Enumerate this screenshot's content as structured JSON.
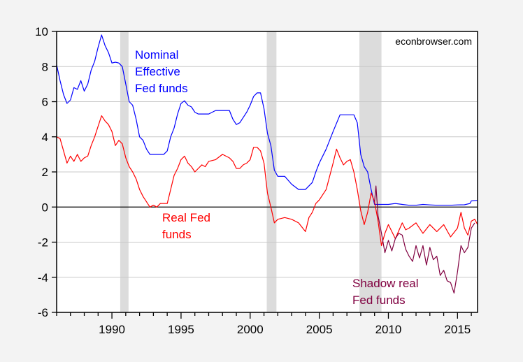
{
  "chart_data": {
    "type": "line",
    "title": "",
    "xlabel": "",
    "ylabel": "",
    "watermark": "econbrowser.com",
    "xlim": [
      1986.0,
      2016.45
    ],
    "ylim": [
      -6,
      10
    ],
    "grid": "horizontal",
    "legend": "inline annotations",
    "x_ticks": [
      1990,
      1995,
      2000,
      2005,
      2010,
      2015
    ],
    "x_tick_labels": [
      "1990",
      "1995",
      "2000",
      "2005",
      "2010",
      "2015"
    ],
    "y_ticks": [
      -6,
      -4,
      -2,
      0,
      2,
      4,
      6,
      8,
      10
    ],
    "y_tick_labels": [
      "-6",
      "-4",
      "-2",
      "0",
      "2",
      "4",
      "6",
      "8",
      "10"
    ],
    "recessions": [
      [
        1990.6,
        1991.2
      ],
      [
        2001.2,
        2001.9
      ],
      [
        2007.9,
        2009.5
      ]
    ],
    "annotations": [
      {
        "series": "nominal",
        "lines": [
          "Nominal",
          "Effective",
          "Fed funds"
        ]
      },
      {
        "series": "real",
        "lines": [
          "Real Fed",
          "funds"
        ]
      },
      {
        "series": "shadow",
        "lines": [
          "Shadow real",
          "Fed funds"
        ]
      }
    ],
    "series": [
      {
        "name": "Nominal Effective Fed funds",
        "key": "nominal",
        "color": "#0000ff",
        "x": [
          1986.0,
          1986.25,
          1986.5,
          1986.75,
          1987.0,
          1987.25,
          1987.5,
          1987.75,
          1988.0,
          1988.25,
          1988.5,
          1988.75,
          1989.0,
          1989.25,
          1989.5,
          1989.75,
          1990.0,
          1990.25,
          1990.5,
          1990.75,
          1991.0,
          1991.25,
          1991.5,
          1991.75,
          1992.0,
          1992.25,
          1992.5,
          1992.75,
          1993.0,
          1993.25,
          1993.5,
          1993.75,
          1994.0,
          1994.25,
          1994.5,
          1994.75,
          1995.0,
          1995.25,
          1995.5,
          1995.75,
          1996.0,
          1996.25,
          1996.5,
          1996.75,
          1997.0,
          1997.5,
          1998.0,
          1998.5,
          1998.75,
          1999.0,
          1999.25,
          1999.5,
          1999.75,
          2000.0,
          2000.25,
          2000.5,
          2000.75,
          2001.0,
          2001.25,
          2001.5,
          2001.75,
          2002.0,
          2002.5,
          2003.0,
          2003.5,
          2004.0,
          2004.5,
          2004.75,
          2005.0,
          2005.5,
          2006.0,
          2006.5,
          2007.0,
          2007.5,
          2007.75,
          2008.0,
          2008.25,
          2008.5,
          2008.75,
          2009.0,
          2009.5,
          2010.0,
          2010.5,
          2011.0,
          2011.5,
          2012.0,
          2012.5,
          2013.0,
          2013.5,
          2014.0,
          2014.5,
          2015.0,
          2015.5,
          2015.9,
          2016.0,
          2016.45
        ],
        "y": [
          8.1,
          7.2,
          6.4,
          5.9,
          6.1,
          6.8,
          6.7,
          7.2,
          6.6,
          7.0,
          7.8,
          8.3,
          9.1,
          9.8,
          9.2,
          8.8,
          8.2,
          8.25,
          8.2,
          8.0,
          7.0,
          6.0,
          5.8,
          5.0,
          4.0,
          3.8,
          3.3,
          3.0,
          3.0,
          3.0,
          3.0,
          3.0,
          3.2,
          4.0,
          4.5,
          5.3,
          5.9,
          6.05,
          5.8,
          5.7,
          5.4,
          5.3,
          5.3,
          5.3,
          5.3,
          5.5,
          5.5,
          5.5,
          5.0,
          4.7,
          4.8,
          5.1,
          5.4,
          5.8,
          6.3,
          6.5,
          6.5,
          5.6,
          4.2,
          3.5,
          2.1,
          1.75,
          1.75,
          1.3,
          1.0,
          1.0,
          1.4,
          2.0,
          2.5,
          3.3,
          4.3,
          5.25,
          5.25,
          5.25,
          4.8,
          3.0,
          2.3,
          2.0,
          1.0,
          0.15,
          0.15,
          0.15,
          0.2,
          0.15,
          0.1,
          0.1,
          0.15,
          0.12,
          0.1,
          0.1,
          0.1,
          0.12,
          0.13,
          0.2,
          0.35,
          0.38
        ]
      },
      {
        "name": "Real Fed funds",
        "key": "real",
        "color": "#ff0000",
        "x": [
          1986.0,
          1986.25,
          1986.5,
          1986.75,
          1987.0,
          1987.25,
          1987.5,
          1987.75,
          1988.0,
          1988.25,
          1988.5,
          1988.75,
          1989.0,
          1989.25,
          1989.5,
          1989.75,
          1990.0,
          1990.25,
          1990.5,
          1990.75,
          1991.0,
          1991.25,
          1991.5,
          1991.75,
          1992.0,
          1992.25,
          1992.5,
          1992.75,
          1993.0,
          1993.25,
          1993.5,
          1993.75,
          1994.0,
          1994.25,
          1994.5,
          1994.75,
          1995.0,
          1995.25,
          1995.5,
          1995.75,
          1996.0,
          1996.25,
          1996.5,
          1996.75,
          1997.0,
          1997.5,
          1998.0,
          1998.5,
          1998.75,
          1999.0,
          1999.25,
          1999.5,
          1999.75,
          2000.0,
          2000.25,
          2000.5,
          2000.75,
          2001.0,
          2001.25,
          2001.5,
          2001.75,
          2002.0,
          2002.5,
          2003.0,
          2003.5,
          2004.0,
          2004.25,
          2004.5,
          2004.75,
          2005.0,
          2005.5,
          2006.0,
          2006.25,
          2006.5,
          2006.75,
          2007.0,
          2007.25,
          2007.5,
          2007.75,
          2008.0,
          2008.25,
          2008.5,
          2008.75,
          2009.0,
          2009.25,
          2009.5,
          2009.75,
          2010.0,
          2010.5,
          2011.0,
          2011.25,
          2011.5,
          2012.0,
          2012.5,
          2013.0,
          2013.5,
          2014.0,
          2014.5,
          2015.0,
          2015.25,
          2015.5,
          2015.75,
          2016.0,
          2016.25,
          2016.45
        ],
        "y": [
          4.0,
          3.9,
          3.2,
          2.5,
          2.9,
          2.6,
          3.0,
          2.6,
          2.8,
          2.9,
          3.5,
          4.0,
          4.6,
          5.2,
          4.9,
          4.7,
          4.3,
          3.5,
          3.8,
          3.6,
          2.8,
          2.3,
          2.0,
          1.6,
          1.0,
          0.6,
          0.3,
          0.0,
          0.1,
          0.0,
          0.2,
          0.2,
          0.2,
          1.0,
          1.8,
          2.2,
          2.7,
          2.9,
          2.5,
          2.3,
          2.0,
          2.2,
          2.4,
          2.3,
          2.6,
          2.7,
          3.0,
          2.8,
          2.6,
          2.2,
          2.2,
          2.4,
          2.5,
          2.7,
          3.4,
          3.4,
          3.2,
          2.5,
          0.8,
          0.0,
          -0.9,
          -0.7,
          -0.6,
          -0.7,
          -0.9,
          -1.4,
          -0.6,
          -0.3,
          0.2,
          0.4,
          1.0,
          2.5,
          3.3,
          2.8,
          2.4,
          2.6,
          2.7,
          2.0,
          1.0,
          -0.2,
          -1.0,
          -0.3,
          0.8,
          0.3,
          -0.8,
          -2.2,
          -1.5,
          -1.0,
          -1.8,
          -0.9,
          -1.3,
          -1.2,
          -0.9,
          -1.5,
          -1.0,
          -1.4,
          -1.0,
          -1.7,
          -1.2,
          -0.3,
          -1.2,
          -1.6,
          -0.8,
          -0.7,
          -1.0
        ]
      },
      {
        "name": "Shadow real Fed funds",
        "key": "shadow",
        "color": "#800040",
        "x": [
          2009.0,
          2009.1,
          2009.25,
          2009.5,
          2009.75,
          2010.0,
          2010.25,
          2010.5,
          2010.75,
          2011.0,
          2011.25,
          2011.5,
          2011.75,
          2012.0,
          2012.25,
          2012.5,
          2012.75,
          2013.0,
          2013.25,
          2013.5,
          2013.75,
          2014.0,
          2014.25,
          2014.5,
          2014.75,
          2015.0,
          2015.25,
          2015.5,
          2015.75,
          2016.0,
          2016.25
        ],
        "y": [
          0.3,
          1.2,
          -0.5,
          -1.5,
          -2.6,
          -1.9,
          -2.5,
          -1.8,
          -1.5,
          -1.6,
          -2.4,
          -2.8,
          -3.1,
          -2.2,
          -2.9,
          -2.2,
          -3.3,
          -2.3,
          -3.0,
          -2.8,
          -3.9,
          -3.6,
          -4.2,
          -4.3,
          -4.9,
          -3.7,
          -2.2,
          -2.6,
          -2.3,
          -1.2,
          -0.9
        ]
      }
    ]
  }
}
